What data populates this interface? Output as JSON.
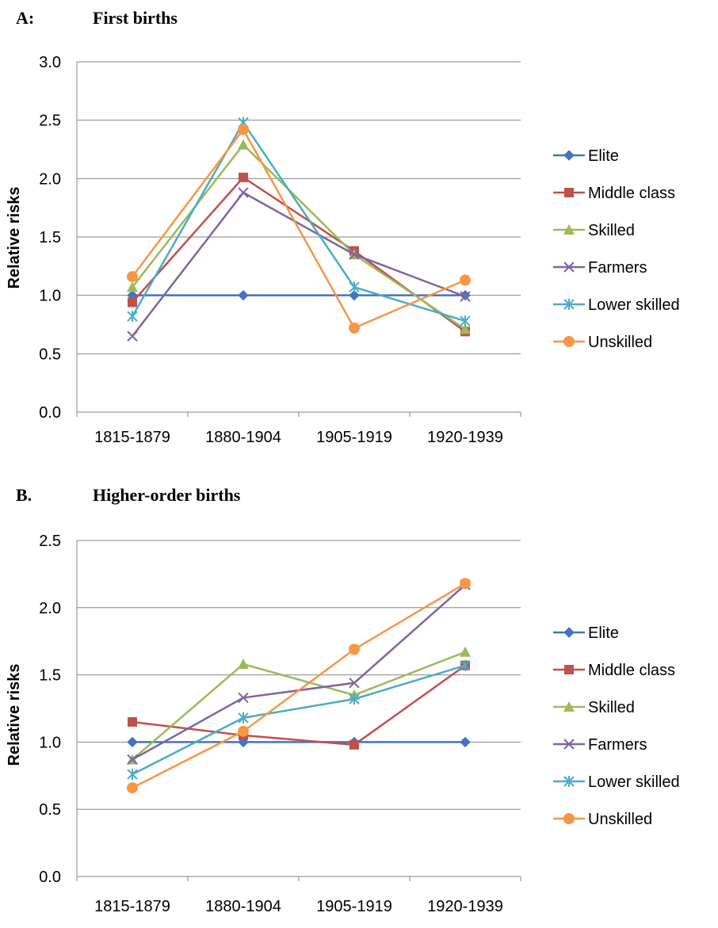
{
  "chart_data": [
    {
      "type": "line",
      "panel_letter": "A:",
      "title": "First births",
      "xlabel": "",
      "ylabel": "Relative risks",
      "categories": [
        "1815-1879",
        "1880-1904",
        "1905-1919",
        "1920-1939"
      ],
      "ylim": [
        0,
        3.0
      ],
      "yticks": [
        "0.0",
        "0.5",
        "1.0",
        "1.5",
        "2.0",
        "2.5",
        "3.0"
      ],
      "grid": true,
      "legend_position": "right",
      "series": [
        {
          "name": "Elite",
          "color": "#4472C4",
          "marker": "diamond",
          "values": [
            1.0,
            1.0,
            1.0,
            1.0
          ]
        },
        {
          "name": "Middle class",
          "color": "#C0504D",
          "marker": "square",
          "values": [
            0.94,
            2.01,
            1.38,
            0.69
          ]
        },
        {
          "name": "Skilled",
          "color": "#9BBB59",
          "marker": "triangle",
          "values": [
            1.07,
            2.29,
            1.35,
            0.71
          ]
        },
        {
          "name": "Farmers",
          "color": "#8064A2",
          "marker": "x",
          "values": [
            0.65,
            1.88,
            1.35,
            0.99
          ]
        },
        {
          "name": "Lower skilled",
          "color": "#4BACC6",
          "marker": "star",
          "values": [
            0.82,
            2.48,
            1.07,
            0.78
          ]
        },
        {
          "name": "Unskilled",
          "color": "#F79646",
          "marker": "circle",
          "values": [
            1.16,
            2.42,
            0.72,
            1.13
          ]
        }
      ]
    },
    {
      "type": "line",
      "panel_letter": "B.",
      "title": "Higher-order births",
      "xlabel": "",
      "ylabel": "Relative risks",
      "categories": [
        "1815-1879",
        "1880-1904",
        "1905-1919",
        "1920-1939"
      ],
      "ylim": [
        0,
        2.5
      ],
      "yticks": [
        "0.0",
        "0.5",
        "1.0",
        "1.5",
        "2.0",
        "2.5"
      ],
      "grid": true,
      "legend_position": "right",
      "series": [
        {
          "name": "Elite",
          "color": "#4472C4",
          "marker": "diamond",
          "values": [
            1.0,
            1.0,
            1.0,
            1.0
          ]
        },
        {
          "name": "Middle class",
          "color": "#C0504D",
          "marker": "square",
          "values": [
            1.15,
            1.05,
            0.98,
            1.57
          ]
        },
        {
          "name": "Skilled",
          "color": "#9BBB59",
          "marker": "triangle",
          "values": [
            0.87,
            1.58,
            1.35,
            1.67
          ]
        },
        {
          "name": "Farmers",
          "color": "#8064A2",
          "marker": "x",
          "values": [
            0.87,
            1.33,
            1.44,
            2.17
          ]
        },
        {
          "name": "Lower skilled",
          "color": "#4BACC6",
          "marker": "star",
          "values": [
            0.76,
            1.18,
            1.32,
            1.57
          ]
        },
        {
          "name": "Unskilled",
          "color": "#F79646",
          "marker": "circle",
          "values": [
            0.66,
            1.08,
            1.69,
            2.18
          ]
        }
      ]
    }
  ]
}
